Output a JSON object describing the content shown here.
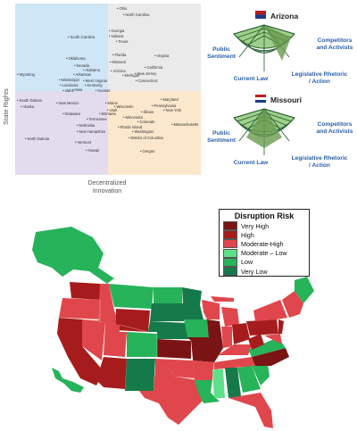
{
  "quadrant_chart": {
    "axis_x_label": [
      "Decentralized",
      "Innovation"
    ],
    "axis_y_label": "State Rights",
    "colors": {
      "top_left": "#cfe6f7",
      "top_right": "#eaeaea",
      "bottom_left": "#e3dcef",
      "bottom_right": "#fbe7cc"
    },
    "points": [
      {
        "label": "Ohio"
      },
      {
        "label": "North Carolina"
      },
      {
        "label": "South Carolina"
      },
      {
        "label": "Georgia"
      },
      {
        "label": "Indiana"
      },
      {
        "label": "Texas"
      },
      {
        "label": "Florida"
      },
      {
        "label": "Virginia"
      },
      {
        "label": "Missouri"
      },
      {
        "label": "California"
      },
      {
        "label": "Oklahoma"
      },
      {
        "label": "Nevada"
      },
      {
        "label": "Alabama"
      },
      {
        "label": "Arkansas"
      },
      {
        "label": "Arizona"
      },
      {
        "label": "Michigan"
      },
      {
        "label": "New Jersey"
      },
      {
        "label": "Mississippi"
      },
      {
        "label": "West Virginia"
      },
      {
        "label": "Connecticut"
      },
      {
        "label": "Wyoming"
      },
      {
        "label": "Louisiana"
      },
      {
        "label": "Kentucky"
      },
      {
        "label": "Iowa"
      },
      {
        "label": "Idaho"
      },
      {
        "label": "Kansas"
      },
      {
        "label": "South Dakota"
      },
      {
        "label": "Alaska"
      },
      {
        "label": "New Mexico"
      },
      {
        "label": "Maine"
      },
      {
        "label": "Wisconsin"
      },
      {
        "label": "Maryland"
      },
      {
        "label": "Utah"
      },
      {
        "label": "Pennsylvania"
      },
      {
        "label": "Delaware"
      },
      {
        "label": "Illinois"
      },
      {
        "label": "New York"
      },
      {
        "label": "Montana"
      },
      {
        "label": "Tennessee"
      },
      {
        "label": "Minnesota"
      },
      {
        "label": "Colorado"
      },
      {
        "label": "Massachusetts"
      },
      {
        "label": "Nebraska"
      },
      {
        "label": "Rhode Island"
      },
      {
        "label": "Washington"
      },
      {
        "label": "New Hampshire"
      },
      {
        "label": "North Dakota"
      },
      {
        "label": "District of Columbia"
      },
      {
        "label": "Vermont"
      },
      {
        "label": "Hawaii"
      },
      {
        "label": "Oregon"
      }
    ]
  },
  "radar_charts": [
    {
      "state": "Arizona",
      "labels": [
        "Public Sentiment",
        "Competitors and Activists",
        "Current Law",
        "Legislative Rhetoric / Action"
      ]
    },
    {
      "state": "Missouri",
      "labels": [
        "Public Sentiment",
        "Competitors and Activists",
        "Current Law",
        "Legislative Rhetoric / Action"
      ]
    }
  ],
  "legend": {
    "title": "Disruption Risk",
    "items": [
      {
        "label": "Very High",
        "color": "#7a1414"
      },
      {
        "label": "High",
        "color": "#a61c1c"
      },
      {
        "label": "Moderate-High",
        "color": "#e0474c"
      },
      {
        "label": "Moderate – Low",
        "color": "#5fe08a"
      },
      {
        "label": "Low",
        "color": "#27b35a"
      },
      {
        "label": "Very Low",
        "color": "#16794a"
      }
    ]
  },
  "map": {
    "colors": {
      "very_high": "#7a1414",
      "high": "#a61c1c",
      "mod_high": "#e0474c",
      "mod_low": "#5fe08a",
      "low": "#27b35a",
      "very_low": "#16794a"
    }
  }
}
